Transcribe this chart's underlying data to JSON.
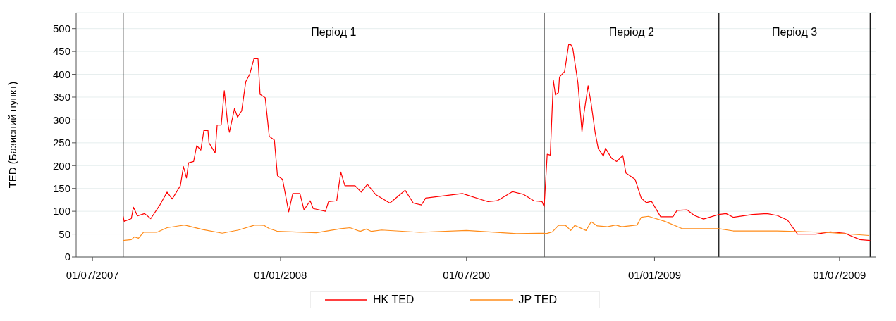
{
  "chart_data": {
    "type": "line",
    "ylabel": "TED (Базисний пункт)",
    "xlim": [
      "2007-06-15",
      "2009-08-06"
    ],
    "xticks": [
      {
        "value": "2007-07-01",
        "label": "01/07/2007"
      },
      {
        "value": "2008-01-01",
        "label": "01/01/2008"
      },
      {
        "value": "2008-07-01",
        "label": "01/07/200"
      },
      {
        "value": "2009-01-01",
        "label": "01/01/2009"
      },
      {
        "value": "2009-07-01",
        "label": "01/07/2009"
      }
    ],
    "ylim": [
      0,
      535
    ],
    "yticks": [
      0,
      50,
      100,
      150,
      200,
      250,
      300,
      350,
      400,
      450,
      500
    ],
    "grid": "y",
    "legend": "bottom",
    "ref_lines": [
      {
        "axis": "x",
        "value": "2007-07-31",
        "color": "#000000"
      },
      {
        "axis": "x",
        "value": "2008-09-15",
        "color": "#000000"
      },
      {
        "axis": "x",
        "value": "2009-03-05",
        "color": "#000000"
      },
      {
        "axis": "x",
        "value": "2009-07-31",
        "color": "#000000"
      }
    ],
    "annotations": [
      "Період 1",
      "Період 2",
      "Період 3"
    ],
    "series": [
      {
        "name": "HK TED",
        "color": "#ff0000",
        "x": [
          "2007-07-31",
          "2007-08-01",
          "2007-08-08",
          "2007-08-10",
          "2007-08-14",
          "2007-08-21",
          "2007-08-27",
          "2007-09-05",
          "2007-09-12",
          "2007-09-17",
          "2007-09-25",
          "2007-09-28",
          "2007-10-01",
          "2007-10-03",
          "2007-10-08",
          "2007-10-11",
          "2007-10-15",
          "2007-10-18",
          "2007-10-22",
          "2007-10-23",
          "2007-10-29",
          "2007-10-31",
          "2007-11-04",
          "2007-11-06",
          "2007-11-07",
          "2007-11-10",
          "2007-11-12",
          "2007-11-17",
          "2007-11-20",
          "2007-11-24",
          "2007-11-28",
          "2007-12-02",
          "2007-12-06",
          "2007-12-10",
          "2007-12-12",
          "2007-12-17",
          "2007-12-21",
          "2007-12-26",
          "2007-12-29",
          "2008-01-03",
          "2008-01-09",
          "2008-01-13",
          "2008-01-20",
          "2008-01-24",
          "2008-01-30",
          "2008-02-02",
          "2008-02-14",
          "2008-02-17",
          "2008-02-25",
          "2008-02-29",
          "2008-03-04",
          "2008-03-14",
          "2008-03-20",
          "2008-03-26",
          "2008-04-03",
          "2008-04-17",
          "2008-05-02",
          "2008-05-10",
          "2008-05-18",
          "2008-05-22",
          "2008-06-13",
          "2008-06-27",
          "2008-07-22",
          "2008-07-31",
          "2008-08-15",
          "2008-08-26",
          "2008-09-05",
          "2008-09-13",
          "2008-09-15",
          "2008-09-18",
          "2008-09-21",
          "2008-09-24",
          "2008-09-26",
          "2008-09-29",
          "2008-09-30",
          "2008-10-05",
          "2008-10-09",
          "2008-10-11",
          "2008-10-13",
          "2008-10-18",
          "2008-10-22",
          "2008-10-24",
          "2008-10-28",
          "2008-10-31",
          "2008-11-04",
          "2008-11-07",
          "2008-11-12",
          "2008-11-14",
          "2008-11-20",
          "2008-11-25",
          "2008-12-01",
          "2008-12-04",
          "2008-12-13",
          "2008-12-19",
          "2008-12-24",
          "2008-12-29",
          "2009-01-07",
          "2009-01-19",
          "2009-01-23",
          "2009-02-02",
          "2009-02-09",
          "2009-02-18",
          "2009-03-05",
          "2009-03-12",
          "2009-03-19",
          "2009-04-07",
          "2009-04-21",
          "2009-05-01",
          "2009-05-11",
          "2009-05-21",
          "2009-06-08",
          "2009-06-22",
          "2009-07-06",
          "2009-07-21",
          "2009-07-31"
        ],
        "values": [
          89,
          78,
          84,
          109,
          90,
          95,
          84,
          114,
          142,
          127,
          156,
          198,
          173,
          206,
          209,
          244,
          234,
          277,
          277,
          250,
          228,
          289,
          289,
          340,
          364,
          298,
          273,
          325,
          306,
          320,
          384,
          401,
          434,
          434,
          356,
          349,
          264,
          256,
          178,
          170,
          99,
          139,
          139,
          103,
          123,
          106,
          100,
          121,
          123,
          186,
          156,
          156,
          142,
          159,
          137,
          118,
          146,
          118,
          114,
          129,
          135,
          139,
          121,
          123,
          143,
          137,
          123,
          121,
          110,
          225,
          223,
          387,
          355,
          360,
          394,
          406,
          465,
          465,
          457,
          382,
          274,
          315,
          375,
          336,
          271,
          237,
          221,
          238,
          216,
          209,
          222,
          184,
          170,
          129,
          119,
          122,
          88,
          88,
          102,
          103,
          91,
          83,
          93,
          95,
          87,
          93,
          95,
          91,
          81,
          50,
          50,
          55,
          52,
          38,
          36
        ]
      },
      {
        "name": "JP TED",
        "color": "#ff8c1a",
        "x": [
          "2007-07-31",
          "2007-08-08",
          "2007-08-11",
          "2007-08-15",
          "2007-08-20",
          "2007-09-02",
          "2007-09-12",
          "2007-09-29",
          "2007-10-17",
          "2007-11-05",
          "2007-11-21",
          "2007-12-07",
          "2007-12-16",
          "2007-12-21",
          "2007-12-28",
          "2007-12-29",
          "2008-02-05",
          "2008-02-29",
          "2008-03-09",
          "2008-03-19",
          "2008-03-25",
          "2008-03-30",
          "2008-04-09",
          "2008-05-16",
          "2008-07-01",
          "2008-08-19",
          "2008-09-14",
          "2008-09-17",
          "2008-09-23",
          "2008-09-29",
          "2008-10-06",
          "2008-10-11",
          "2008-10-15",
          "2008-10-26",
          "2008-10-31",
          "2008-11-06",
          "2008-11-16",
          "2008-11-24",
          "2008-11-30",
          "2008-12-15",
          "2008-12-19",
          "2008-12-26",
          "2009-01-11",
          "2009-01-28",
          "2009-02-07",
          "2009-03-05",
          "2009-03-19",
          "2009-05-01",
          "2009-06-17",
          "2009-07-30"
        ],
        "values": [
          36,
          38,
          44,
          41,
          54,
          54,
          64,
          70,
          60,
          52,
          59,
          70,
          69,
          62,
          57,
          56,
          53,
          62,
          64,
          56,
          61,
          56,
          59,
          54,
          58,
          51,
          52,
          51,
          55,
          69,
          69,
          58,
          69,
          58,
          77,
          68,
          66,
          70,
          66,
          70,
          87,
          89,
          78,
          62,
          62,
          62,
          57,
          57,
          54,
          47
        ]
      }
    ]
  }
}
